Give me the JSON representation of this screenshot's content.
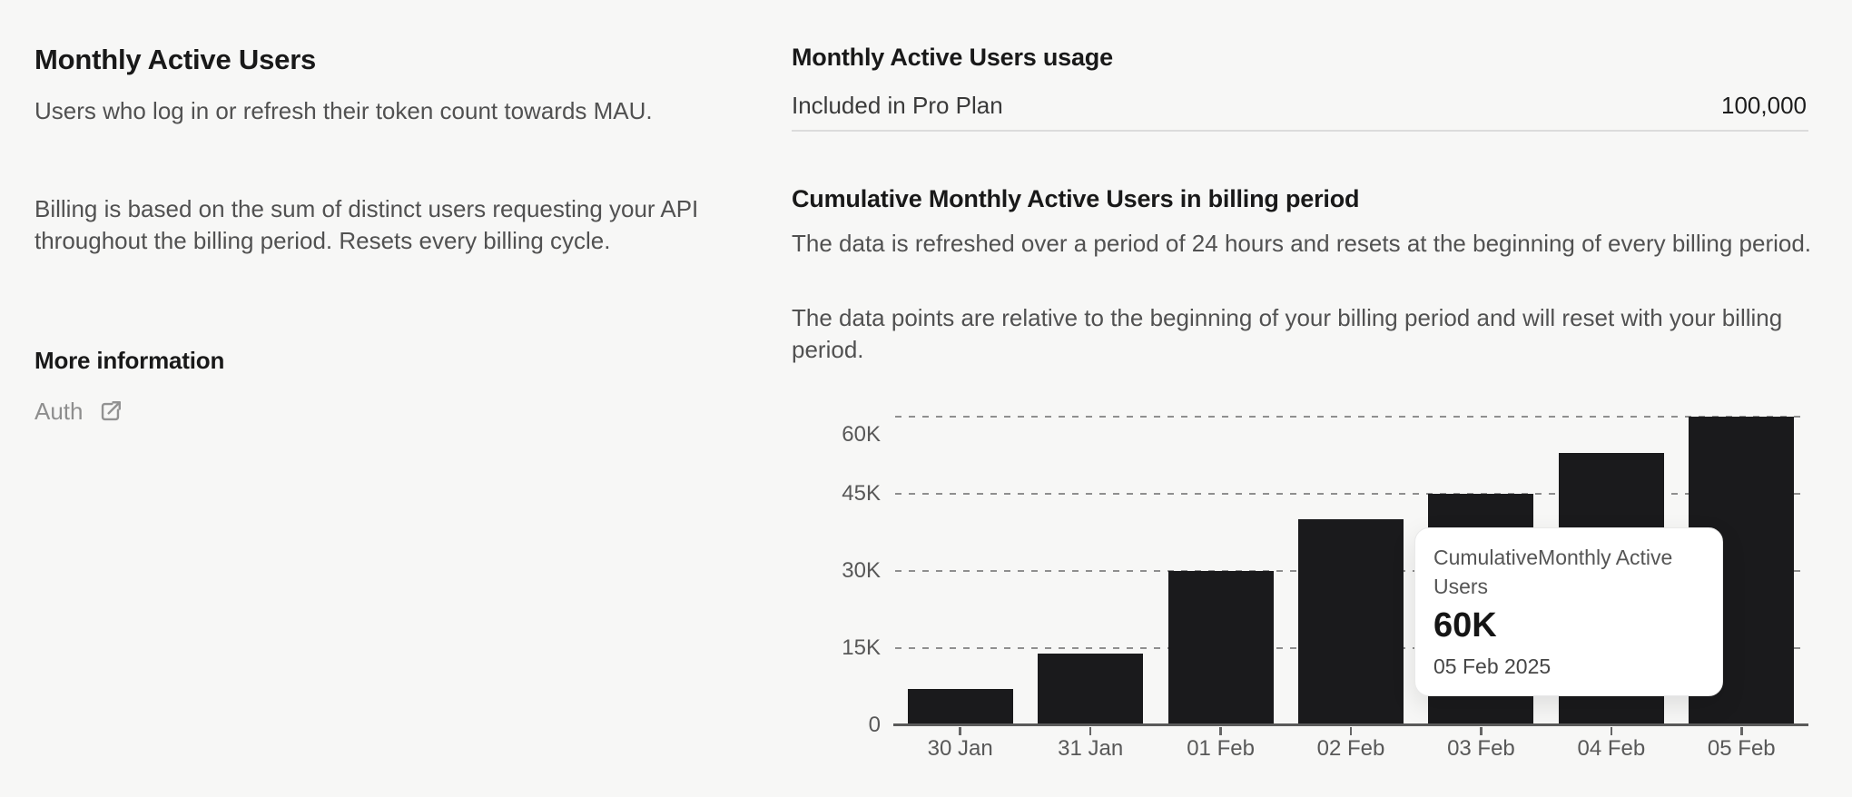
{
  "left_panel": {
    "title": "Monthly Active Users",
    "description": "Users who log in or refresh their token count towards MAU.",
    "billing_note": "Billing is based on the sum of distinct users requesting your API throughout the billing period. Resets every billing cycle.",
    "more_information_heading": "More information",
    "auth_link_label": "Auth"
  },
  "usage_panel": {
    "title": "Monthly Active Users usage",
    "plan_row": {
      "label": "Included in Pro Plan",
      "value": "100,000"
    },
    "chart_section": {
      "title": "Cumulative Monthly Active Users in billing period",
      "note_refresh": "The data is refreshed over a period of 24 hours and resets at the beginning of every billing period.",
      "note_relative": "The data points are relative to the beginning of your billing period and will reset with your billing period."
    },
    "tooltip": {
      "series_label": "CumulativeMonthly Active Users",
      "value": "60K",
      "date": "05 Feb 2025"
    }
  },
  "chart_data": {
    "type": "bar",
    "title": "Cumulative Monthly Active Users in billing period",
    "series_name": "Cumulative Monthly Active Users",
    "categories": [
      "30 Jan",
      "31 Jan",
      "01 Feb",
      "02 Feb",
      "03 Feb",
      "04 Feb",
      "05 Feb"
    ],
    "values": [
      7000,
      14000,
      30000,
      40000,
      45000,
      53000,
      60000
    ],
    "y_ticks": [
      {
        "label": "60K",
        "value": 60000
      },
      {
        "label": "45K",
        "value": 45000
      },
      {
        "label": "30K",
        "value": 30000
      },
      {
        "label": "15K",
        "value": 15000
      },
      {
        "label": "0",
        "value": 0
      }
    ],
    "ylim": [
      0,
      60000
    ],
    "grid": "dashed-horizontal",
    "legend": "none",
    "bar_color": "#1a1a1c",
    "highlighted_category": "05 Feb"
  }
}
